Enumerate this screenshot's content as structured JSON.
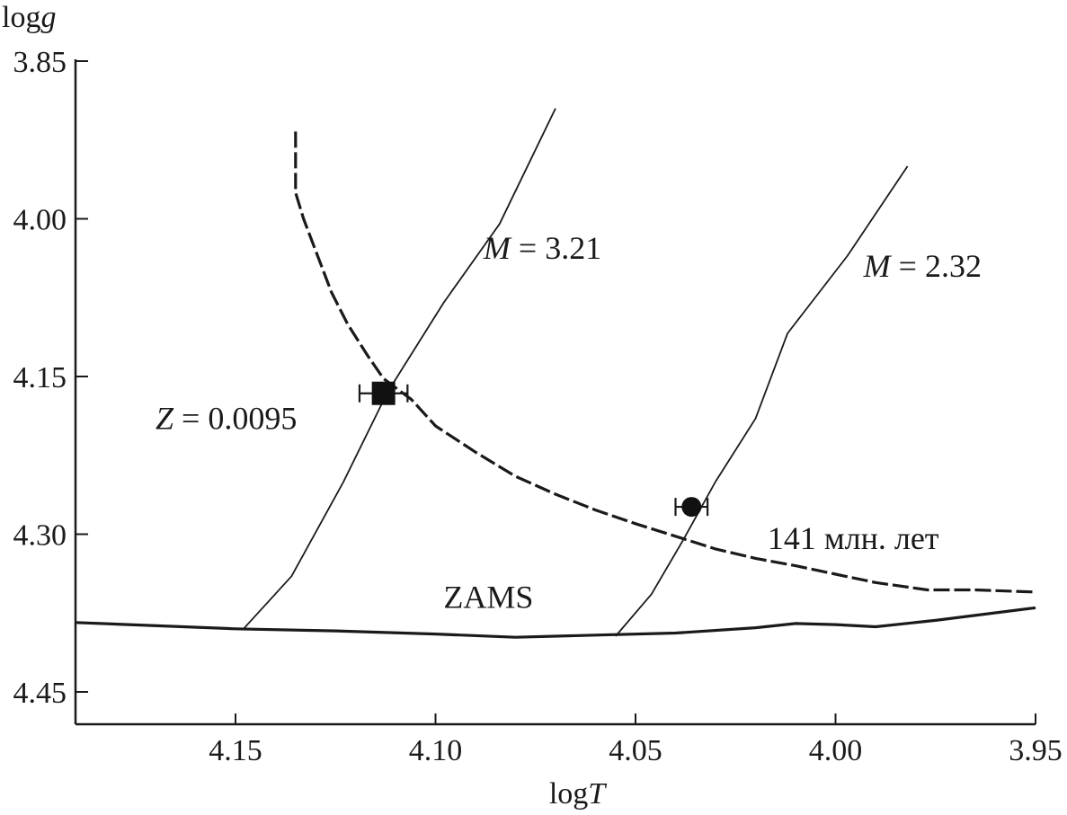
{
  "chart_data": {
    "type": "line",
    "title": "",
    "xlabel": {
      "prefix": "log",
      "italic": "T"
    },
    "ylabel": {
      "prefix": "log",
      "italic": "g"
    },
    "xlim": [
      4.19,
      3.95
    ],
    "ylim": [
      3.85,
      4.48
    ],
    "x_reversed": true,
    "y_reversed": true,
    "x_ticks": [
      4.15,
      4.1,
      4.05,
      4.0,
      3.95
    ],
    "x_tick_labels": [
      "4.15",
      "4.10",
      "4.05",
      "4.00",
      "3.95"
    ],
    "y_ticks": [
      3.85,
      4.0,
      4.15,
      4.3,
      4.45
    ],
    "y_tick_labels": [
      "3.85",
      "4.00",
      "4.15",
      "4.30",
      "4.45"
    ],
    "grid": false,
    "series": [
      {
        "name": "ZAMS",
        "style": "solid-thick",
        "points": [
          [
            4.19,
            4.384
          ],
          [
            4.15,
            4.39
          ],
          [
            4.125,
            4.392
          ],
          [
            4.1,
            4.395
          ],
          [
            4.08,
            4.398
          ],
          [
            4.06,
            4.396
          ],
          [
            4.04,
            4.394
          ],
          [
            4.02,
            4.389
          ],
          [
            4.01,
            4.385
          ],
          [
            4.0,
            4.386
          ],
          [
            3.99,
            4.388
          ],
          [
            3.975,
            4.382
          ],
          [
            3.95,
            4.37
          ]
        ]
      },
      {
        "name": "M = 3.21",
        "style": "solid-thin",
        "points": [
          [
            4.148,
            4.39
          ],
          [
            4.136,
            4.34
          ],
          [
            4.123,
            4.25
          ],
          [
            4.112,
            4.165
          ],
          [
            4.098,
            4.08
          ],
          [
            4.084,
            4.005
          ],
          [
            4.07,
            3.895
          ]
        ]
      },
      {
        "name": "M = 2.32",
        "style": "solid-thin",
        "points": [
          [
            4.055,
            4.397
          ],
          [
            4.046,
            4.357
          ],
          [
            4.038,
            4.305
          ],
          [
            4.03,
            4.25
          ],
          [
            4.02,
            4.19
          ],
          [
            4.012,
            4.109
          ],
          [
            3.997,
            4.035
          ],
          [
            3.982,
            3.95
          ]
        ]
      },
      {
        "name": "141 млн. лет",
        "style": "dashed",
        "points": [
          [
            4.135,
            3.917
          ],
          [
            4.135,
            3.975
          ],
          [
            4.133,
            4.0
          ],
          [
            4.13,
            4.03
          ],
          [
            4.126,
            4.07
          ],
          [
            4.122,
            4.1
          ],
          [
            4.117,
            4.13
          ],
          [
            4.113,
            4.152
          ],
          [
            4.106,
            4.172
          ],
          [
            4.1,
            4.197
          ],
          [
            4.09,
            4.222
          ],
          [
            4.08,
            4.245
          ],
          [
            4.07,
            4.262
          ],
          [
            4.06,
            4.277
          ],
          [
            4.05,
            4.29
          ],
          [
            4.04,
            4.302
          ],
          [
            4.03,
            4.314
          ],
          [
            4.02,
            4.323
          ],
          [
            4.01,
            4.33
          ],
          [
            4.0,
            4.338
          ],
          [
            3.99,
            4.346
          ],
          [
            3.977,
            4.353
          ],
          [
            3.965,
            4.353
          ],
          [
            3.95,
            4.355
          ]
        ]
      }
    ],
    "points": [
      {
        "marker": "square",
        "x": 4.113,
        "y": 4.166,
        "xerr": 0.006
      },
      {
        "marker": "circle",
        "x": 4.036,
        "y": 4.274,
        "xerr": 0.004
      }
    ],
    "annotations": [
      {
        "text_italic": "M",
        "text": " = 3.21",
        "x": 4.088,
        "y": 4.038
      },
      {
        "text_italic": "M",
        "text": " = 2.32",
        "x": 3.993,
        "y": 4.055
      },
      {
        "text_italic": "Z",
        "text": " = 0.0095",
        "x": 4.17,
        "y": 4.2
      },
      {
        "text_italic": "",
        "text": "141 млн. лет",
        "x": 4.017,
        "y": 4.314
      },
      {
        "text_italic": "",
        "text": "ZAMS",
        "x": 4.098,
        "y": 4.37
      }
    ]
  }
}
